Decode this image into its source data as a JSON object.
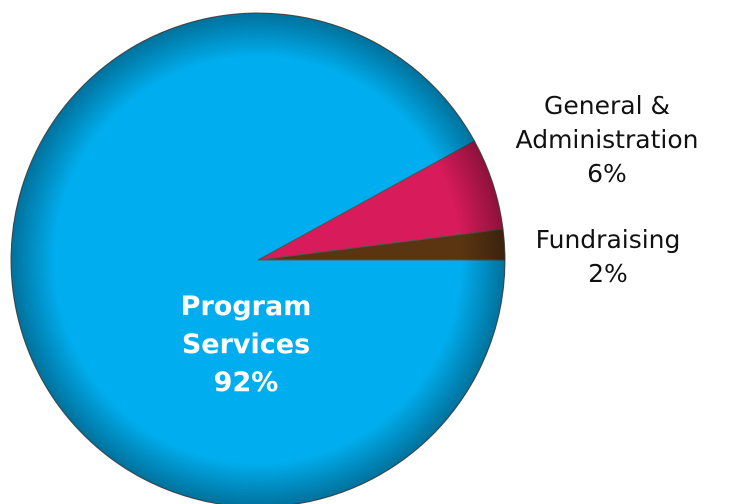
{
  "chart_data": {
    "type": "pie",
    "categories": [
      "Program Services",
      "General & Administration",
      "Fundraising"
    ],
    "values": [
      92,
      6,
      2
    ],
    "value_labels": [
      "92%",
      "6%",
      "2%"
    ],
    "colors": [
      "#00aeef",
      "#d81b5b",
      "#5b3512"
    ]
  }
}
